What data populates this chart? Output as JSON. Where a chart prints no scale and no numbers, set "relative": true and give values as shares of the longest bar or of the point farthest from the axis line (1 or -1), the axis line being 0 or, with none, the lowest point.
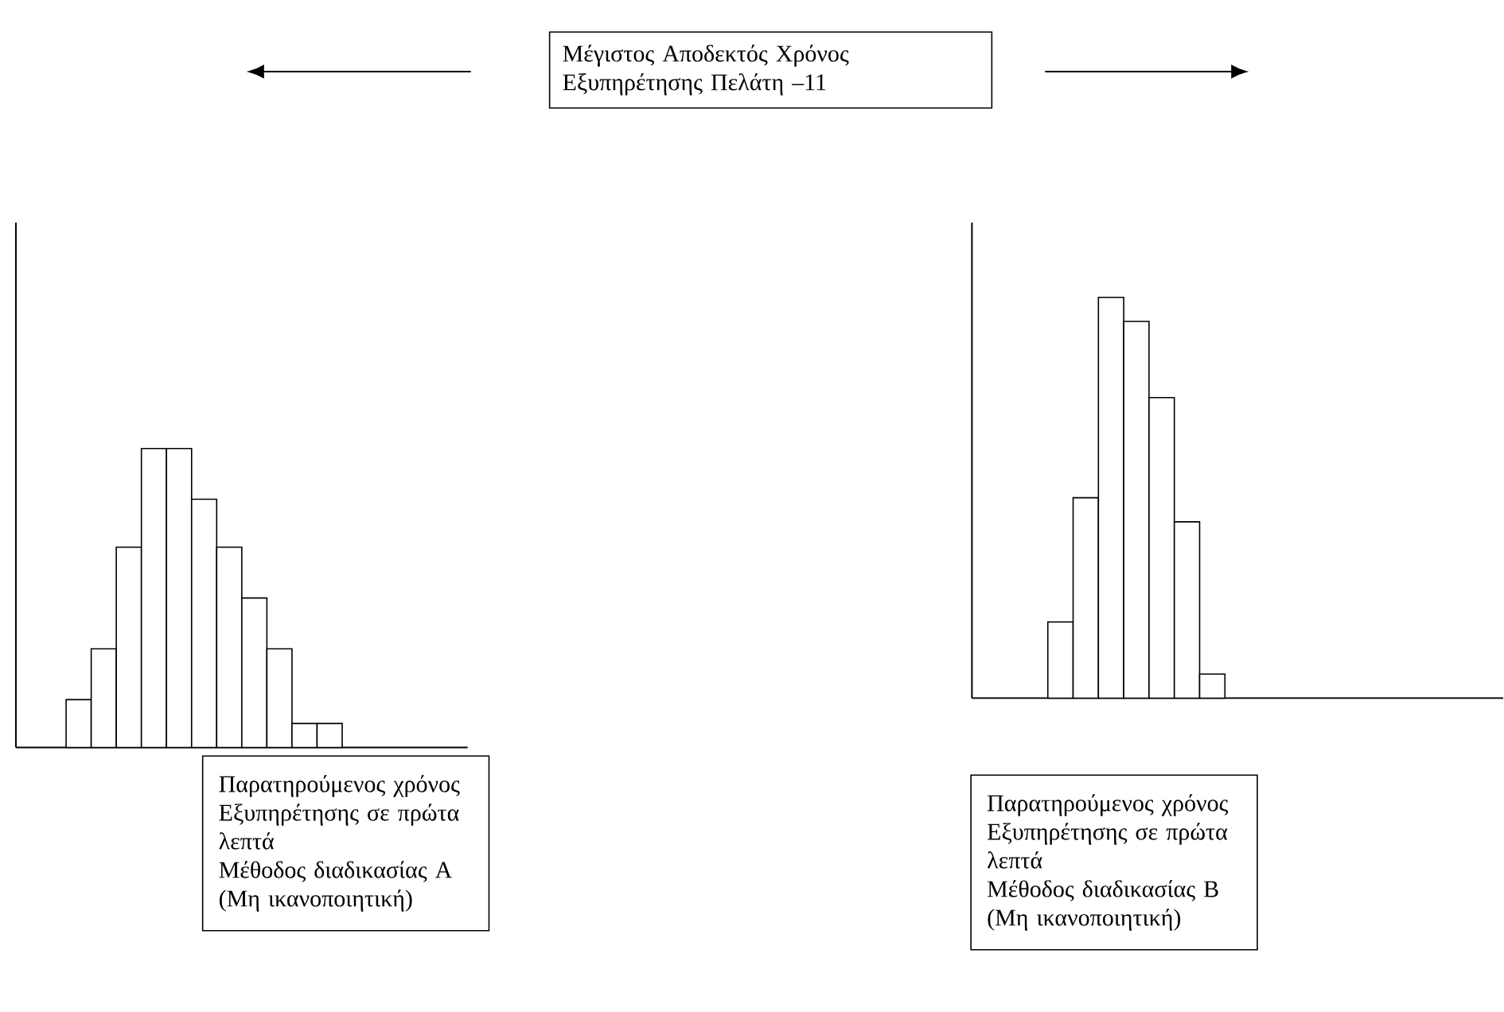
{
  "chart_data": [
    {
      "type": "other",
      "title": "Μέγιστος Αποδεκτός Χρόνος Εξυπηρέτησης Πελάτη –11"
    },
    {
      "type": "bar",
      "relative": true,
      "xlabel": "Παρατηρούμενος χρόνος Εξυπηρέτησης σε πρώτα λεπτά",
      "annotations": [
        "Μέθοδος διαδικασίας Α (Μη ικανοποιητική)"
      ],
      "color": "#ffffff",
      "categories": [
        null,
        null,
        null,
        null,
        null,
        null,
        null,
        null,
        null,
        null,
        null
      ],
      "values": [
        0.16,
        0.33,
        0.67,
        1,
        1,
        0.83,
        0.67,
        0.5,
        0.33,
        0.08,
        0.08
      ]
    },
    {
      "type": "bar",
      "relative": true,
      "xlabel": "Παρατηρούμενος χρόνος Εξυπηρέτησης σε πρώτα λεπτά",
      "annotations": [
        "Μέθοδος διαδικασίας Β (Μη ικανοποιητική)"
      ],
      "color": "#ffffff",
      "categories": [
        null,
        null,
        null,
        null,
        null,
        null,
        null
      ],
      "values": [
        0.19,
        0.5,
        1,
        0.94,
        0.75,
        0.44,
        0.06
      ]
    }
  ]
}
